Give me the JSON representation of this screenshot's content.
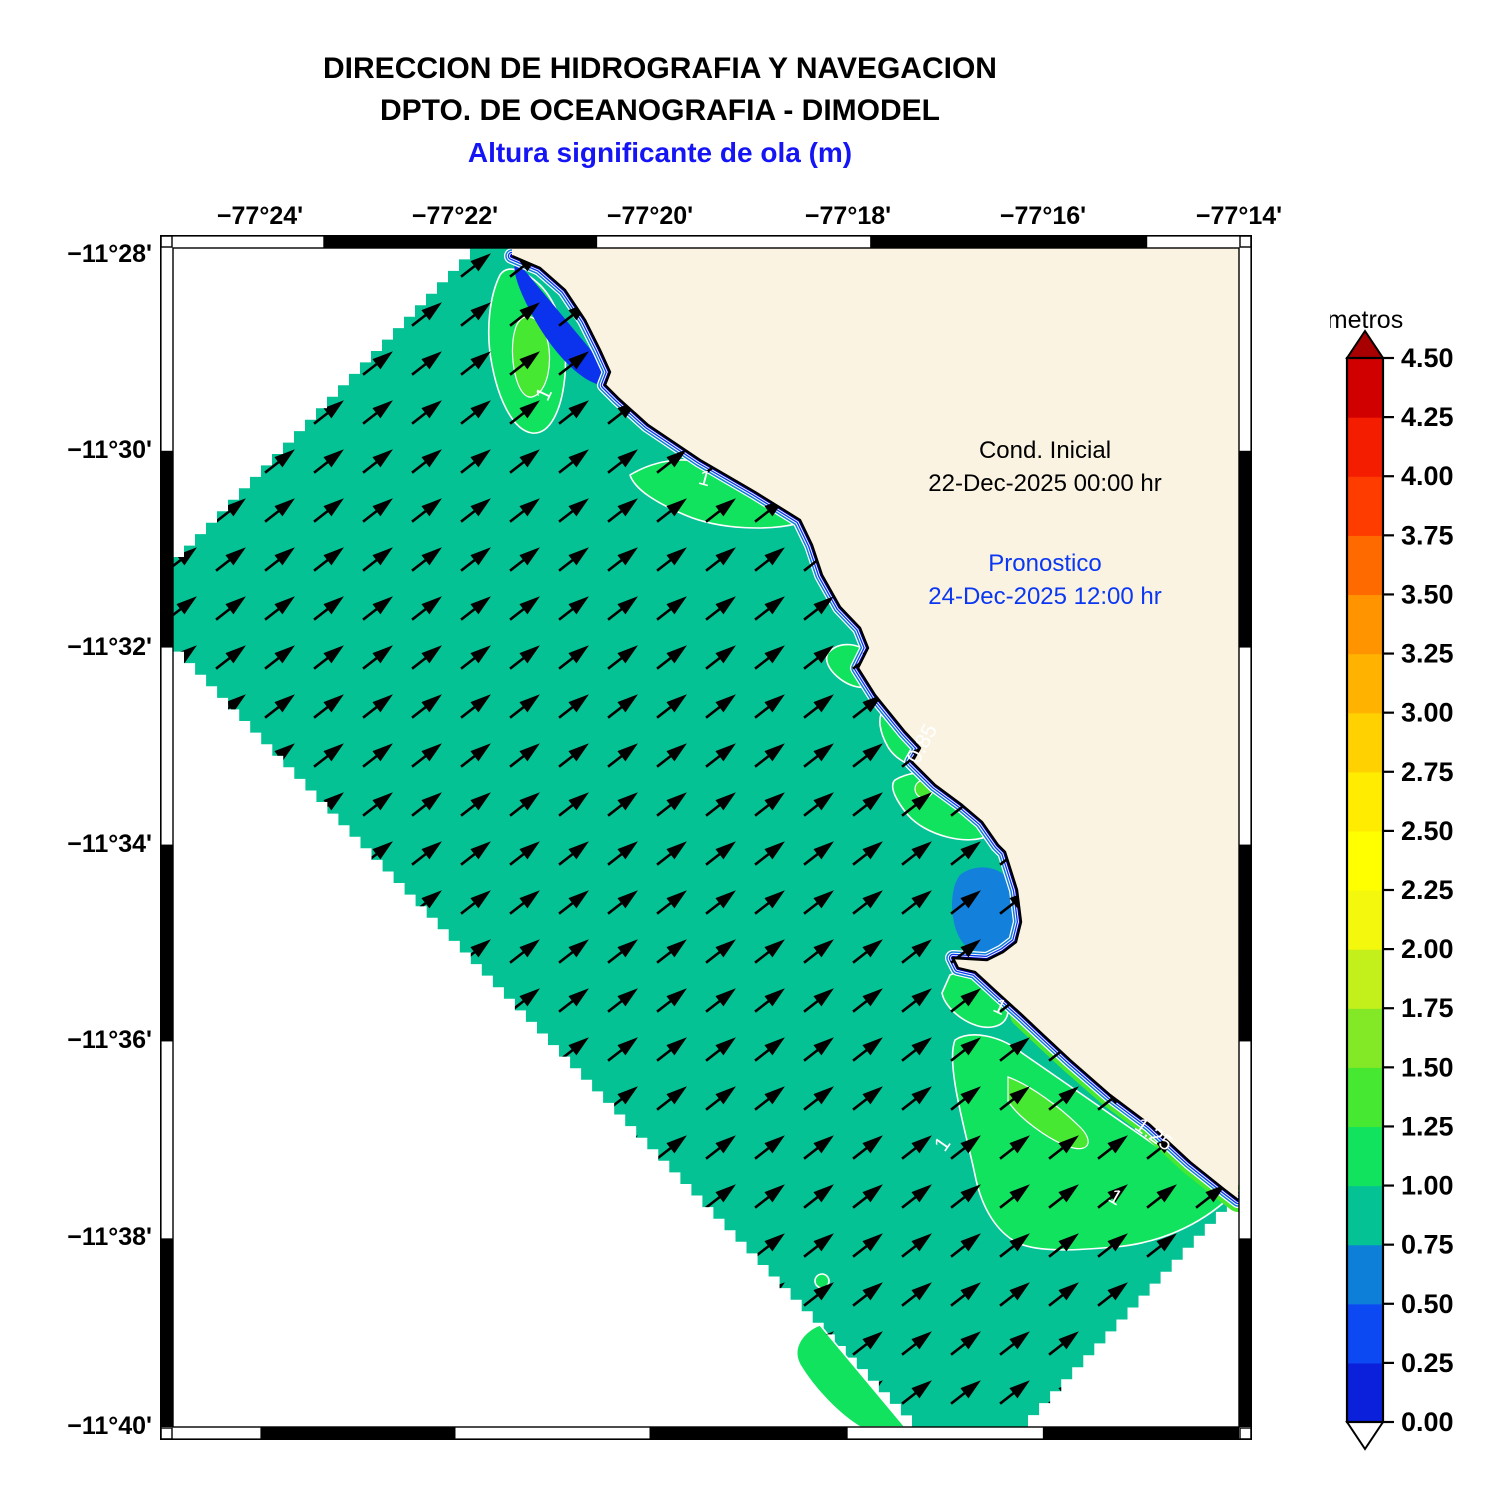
{
  "header": {
    "title_line1": "DIRECCION DE HIDROGRAFIA Y NAVEGACION",
    "title_line2": "DPTO. DE OCEANOGRAFIA - DIMODEL",
    "subtitle": "Altura significante de ola (m)"
  },
  "map": {
    "axes": {
      "lon_labels": [
        "−77°24'",
        "−77°22'",
        "−77°20'",
        "−77°18'",
        "−77°16'",
        "−77°14'"
      ],
      "lat_labels": [
        "−11°28'",
        "−11°30'",
        "−11°32'",
        "−11°34'",
        "−11°36'",
        "−11°38'",
        "−11°40'"
      ]
    },
    "annotations": {
      "initial_label": "Cond. Inicial",
      "initial_datetime": "22-Dec-2025 00:00 hr",
      "forecast_label": "Pronostico",
      "forecast_datetime": "24-Dec-2025 12:00 hr"
    },
    "contour_labels": [
      "1",
      "1",
      "0.85",
      "1",
      "1",
      "1.25",
      "1"
    ],
    "colors": {
      "sea": "#05c294",
      "land": "#faf3e2",
      "wave_1m_band": "#12e35e",
      "wave_125m_band": "#46e832",
      "bay_upper": "#0b33ee",
      "bay_mid": "#1380dc",
      "coast_blue_outer": "#0e7fd9",
      "coast_blue_mid": "#0b39f2",
      "coast_blue_inner": "#0000ce",
      "arrow": "#000000"
    }
  },
  "colorbar": {
    "title": "metros",
    "min": 0.0,
    "max": 4.5,
    "step": 0.25,
    "tick_labels": [
      "4.50",
      "4.25",
      "4.00",
      "3.75",
      "3.50",
      "3.25",
      "3.00",
      "2.75",
      "2.50",
      "2.25",
      "2.00",
      "1.75",
      "1.50",
      "1.25",
      "1.00",
      "0.75",
      "0.50",
      "0.25",
      "0.00"
    ],
    "segment_colors_bottom_to_top": [
      "#0a20db",
      "#0d49f2",
      "#0e7fd9",
      "#05c294",
      "#12e35e",
      "#46e832",
      "#83e926",
      "#c3ef1b",
      "#f4f80d",
      "#ffff00",
      "#ffec00",
      "#ffd100",
      "#ffb200",
      "#ff9400",
      "#ff6a00",
      "#ff3c00",
      "#f51d00",
      "#d10000"
    ],
    "over_color": "#a80000",
    "under_color": "#ffffff"
  }
}
